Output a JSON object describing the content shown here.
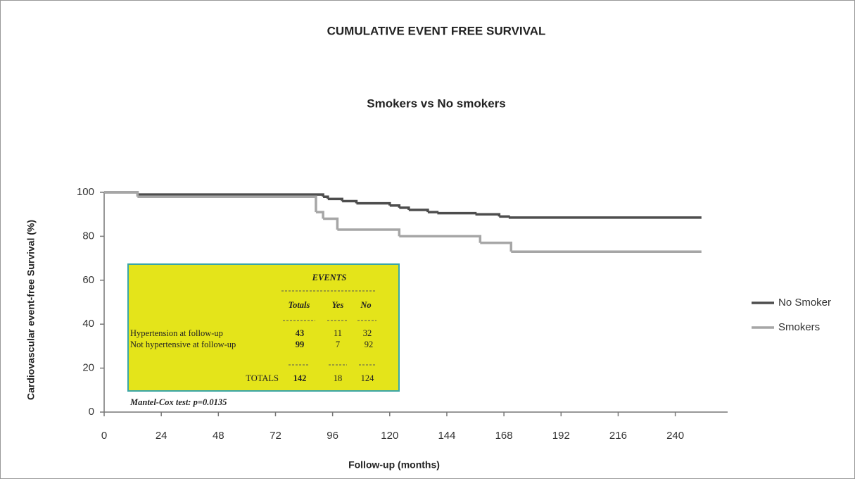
{
  "chart_data": {
    "type": "line",
    "step": true,
    "title": "CUMULATIVE EVENT FREE SURVIVAL",
    "subtitle": "Smokers vs No smokers",
    "x_label": "Follow-up (months)",
    "y_label": "Cardiovascular   event-free Survival (%)",
    "xlim": [
      0,
      262
    ],
    "xticks": [
      0,
      24,
      48,
      72,
      96,
      120,
      144,
      168,
      192,
      216,
      240
    ],
    "ylim": [
      0,
      100
    ],
    "yticks": [
      0,
      20,
      40,
      60,
      80,
      100
    ],
    "legend": "right",
    "series": [
      {
        "name": "No Smoker",
        "color": "#4d4d4d",
        "x": [
          0,
          14,
          92,
          94,
          100,
          106,
          120,
          124,
          128,
          136,
          140,
          156,
          166,
          170,
          251
        ],
        "values": [
          100,
          99,
          98,
          97,
          96,
          95,
          94,
          93,
          92,
          91,
          90.5,
          90,
          89,
          88.5,
          88.5
        ]
      },
      {
        "name": "Smokers",
        "color": "#a6a6a6",
        "x": [
          0,
          14,
          89,
          92,
          98,
          124,
          158,
          171,
          251
        ],
        "values": [
          100,
          98,
          91,
          88,
          83,
          80,
          77,
          73,
          73
        ]
      }
    ],
    "inset": {
      "title": "EVENTS",
      "columns": [
        "Totals",
        "Yes",
        "No"
      ],
      "rows": [
        {
          "label": "Hypertension at follow-up",
          "values": [
            43,
            11,
            32
          ]
        },
        {
          "label": "Not hypertensive at follow-up",
          "values": [
            99,
            7,
            92
          ]
        }
      ],
      "total": {
        "label": "TOTALS",
        "values": [
          142,
          18,
          124
        ]
      },
      "note": "Mantel-Cox test: p=0.0135"
    }
  }
}
